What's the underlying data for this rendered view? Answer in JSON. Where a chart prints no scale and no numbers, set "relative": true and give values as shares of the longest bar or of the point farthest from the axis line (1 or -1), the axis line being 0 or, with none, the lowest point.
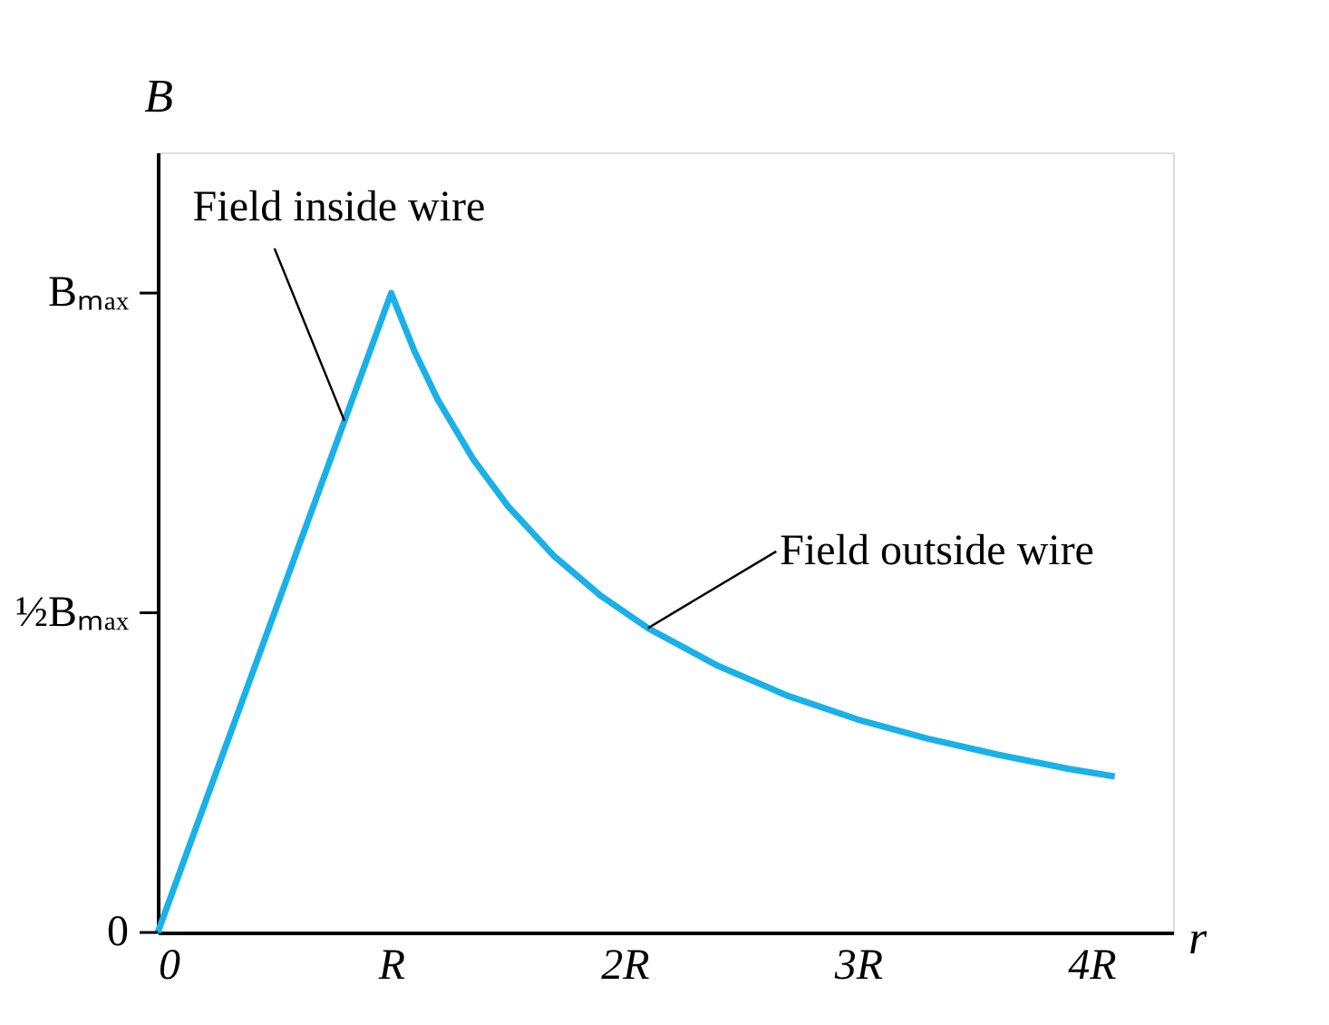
{
  "chart_data": {
    "type": "line",
    "xlabel": "r",
    "ylabel": "B",
    "x": [
      0,
      1,
      1.1,
      1.2,
      1.35,
      1.5,
      1.7,
      1.9,
      2.1,
      2.4,
      2.7,
      3.0,
      3.3,
      3.6,
      3.9,
      4.1
    ],
    "series": [
      {
        "color": "#1ab0e8",
        "values": [
          0,
          1,
          0.909,
          0.833,
          0.741,
          0.667,
          0.588,
          0.526,
          0.476,
          0.417,
          0.37,
          0.333,
          0.303,
          0.278,
          0.256,
          0.244
        ]
      }
    ],
    "xlim": [
      0,
      4.35
    ],
    "relative": true,
    "xticks": [
      0,
      {
        "value": 1,
        "label": "R"
      },
      {
        "value": 2,
        "label": "2R"
      },
      {
        "value": 3,
        "label": "3R"
      },
      {
        "value": 4,
        "label": "4R"
      }
    ],
    "annotations": [
      "0",
      "½Bₘₐₓ",
      "Bₘₐₓ",
      {
        "text": "Field inside wire",
        "x": 0.8,
        "y": 0.8
      },
      {
        "text": "Field outside wire",
        "x": 2.1,
        "y": 0.476
      }
    ],
    "grid": false,
    "marker": "none",
    "line_style": "solid"
  }
}
